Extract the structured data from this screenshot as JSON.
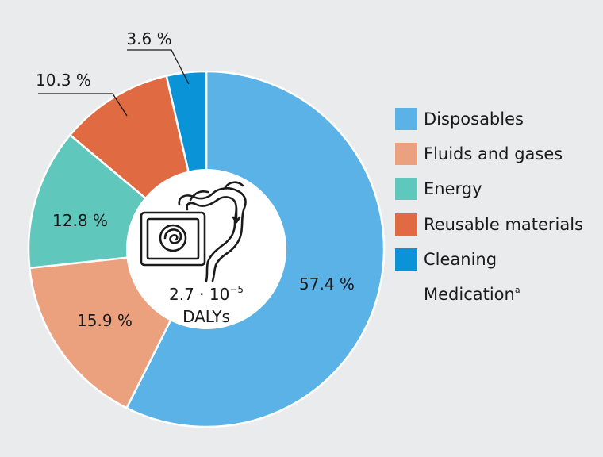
{
  "chart_data": {
    "type": "donut",
    "center_label": {
      "value_base": "2.7 · 10",
      "value_exp": "−5",
      "unit": "DALYs"
    },
    "slices": [
      {
        "name": "Disposables",
        "value": 57.4,
        "label": "57.4 %",
        "color": "#5ab2e6"
      },
      {
        "name": "Fluids and gases",
        "value": 15.9,
        "label": "15.9 %",
        "color": "#eba07e"
      },
      {
        "name": "Energy",
        "value": 12.8,
        "label": "12.8 %",
        "color": "#5fc7bb"
      },
      {
        "name": "Reusable materials",
        "value": 10.3,
        "label": "10.3 %",
        "color": "#e06b42"
      },
      {
        "name": "Cleaning",
        "value": 3.6,
        "label": "3.6 %",
        "color": "#0b93d8"
      }
    ],
    "legend": [
      {
        "label": "Disposables",
        "sup": "",
        "color": "#5ab2e6"
      },
      {
        "label": "Fluids and gases",
        "sup": "",
        "color": "#eba07e"
      },
      {
        "label": "Energy",
        "sup": "",
        "color": "#5fc7bb"
      },
      {
        "label": "Reusable materials",
        "sup": "",
        "color": "#e06b42"
      },
      {
        "label": "Cleaning",
        "sup": "",
        "color": "#0b93d8"
      },
      {
        "label": "Medication",
        "sup": "a",
        "color": ""
      }
    ],
    "icon": "colonoscopy-monitor-and-colon-icon",
    "legend_position": "right"
  }
}
